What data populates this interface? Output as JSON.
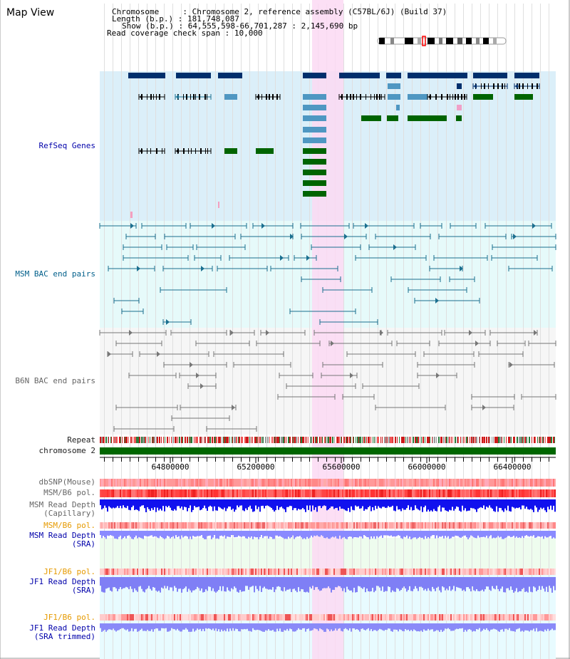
{
  "view": {
    "title": "Map View"
  },
  "info": {
    "chromosome_label": "Chromosome   ",
    "chromosome_value": "Chromosome 2, reference assembly (C57BL/6J) (Build 37)",
    "length_label": "Length (b.p.)",
    "length_value": "181,748,087",
    "show_label": "Show (b.p.)",
    "show_value": "64,555,598-66,701,287 : 2,145,690 bp",
    "coverage_label": "Read coverage check span",
    "coverage_value": "10,000"
  },
  "tracks": {
    "refseq": "RefSeq Genes",
    "msm_bac": "MSM BAC end pairs",
    "b6n_bac": "B6N BAC end pairs",
    "repeat": "Repeat",
    "chromosome": "chromosome 2",
    "dbsnp": "dbSNP(Mouse)",
    "msm_b6_pol_1": "MSM/B6 pol.",
    "msm_read_depth_cap_1": "MSM Read Depth",
    "msm_read_depth_cap_2": "(Capillary)",
    "msm_b6_pol_2": "MSM/B6 pol.",
    "msm_read_depth_sra_1": "MSM Read Depth",
    "msm_read_depth_sra_2": "(SRA)",
    "jf1_b6_pol_1": "JF1/B6 pol.",
    "jf1_read_depth_sra_1": "JF1 Read Depth",
    "jf1_read_depth_sra_2": "(SRA)",
    "jf1_b6_pol_2": "JF1/B6 pol.",
    "jf1_read_depth_trim_1": "JF1 Read Depth",
    "jf1_read_depth_trim_2": "(SRA trimmed)"
  },
  "axis": {
    "ticks": [
      "64800000",
      "65200000",
      "65600000",
      "66000000",
      "66400000"
    ]
  },
  "colors": {
    "refseq_bg": "#dbeff9",
    "msm_bg": "#e6fafa",
    "b6n_bg": "#f6f6f6",
    "highlight": "#fbd9f3",
    "gene_dark": "#002f6c",
    "gene_mid": "#4f97c2",
    "gene_green": "#006400",
    "bac_teal": "#1a6f8f",
    "bac_gray": "#777777",
    "repeat_red": "#cc1a1a",
    "chrom_green": "#006600",
    "depth_blue": "#1111ee",
    "depth_light": "#8a8aff"
  }
}
